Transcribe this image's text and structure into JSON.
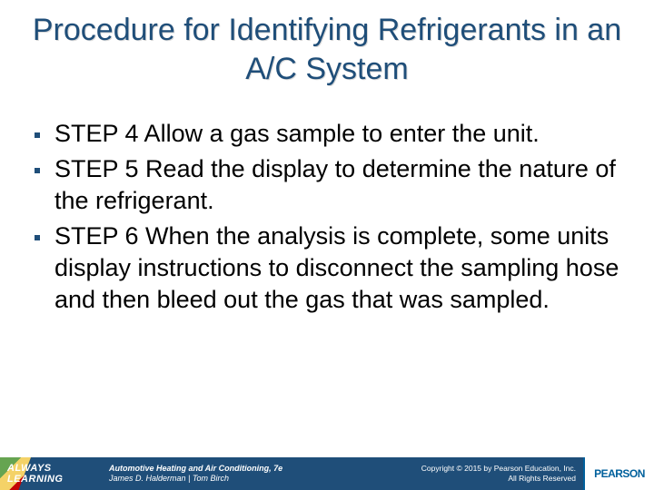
{
  "slide": {
    "title": "Procedure for Identifying Refrigerants in an A/C System",
    "title_color": "#1f4e79",
    "title_band_color": "#1f4e79",
    "title_fontsize": 34,
    "background_color": "#ffffff"
  },
  "bullets": [
    {
      "text": "STEP 4 Allow a gas sample to enter the unit."
    },
    {
      "text": "STEP 5 Read the display to determine the nature of the refrigerant."
    },
    {
      "text": "STEP 6 When the analysis is complete, some units display instructions to disconnect the sampling hose and then bleed out the gas that was sampled."
    }
  ],
  "bullet_style": {
    "fontsize": 27,
    "text_color": "#000000",
    "bullet_color": "#1f4e79"
  },
  "footer": {
    "background_color": "#1f4e79",
    "left_badge": "ALWAYS LEARNING",
    "center_line1": "Automotive Heating and Air Conditioning, 7e",
    "center_line2": "James D. Halderman | Tom Birch",
    "right_line1": "Copyright © 2015 by Pearson Education, Inc.",
    "right_line2": "All Rights Reserved",
    "logo_text": "PEARSON",
    "logo_bg": "#ffffff",
    "logo_color": "#00609c"
  }
}
